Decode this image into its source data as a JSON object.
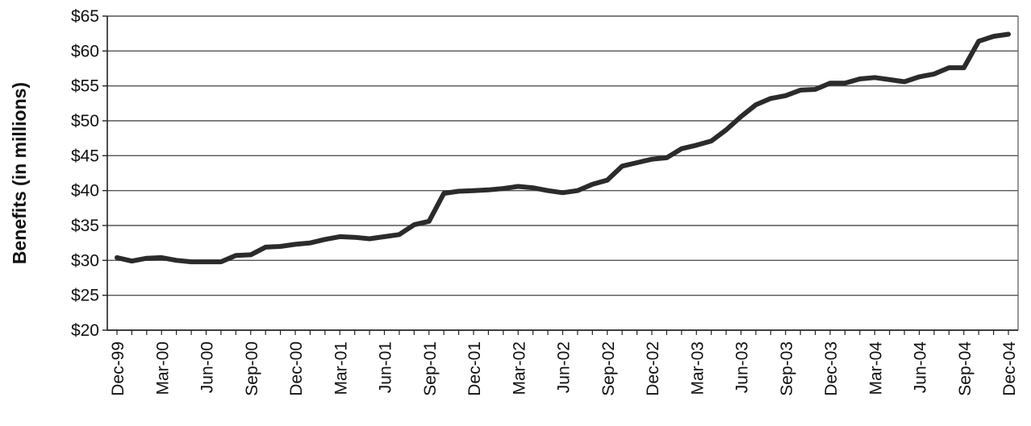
{
  "chart_data": {
    "type": "line",
    "title": "",
    "xlabel": "",
    "ylabel": "Benefits (in millions)",
    "ylim": [
      20,
      65
    ],
    "y_ticks": [
      {
        "value": 20,
        "label": "$20"
      },
      {
        "value": 25,
        "label": "$25"
      },
      {
        "value": 30,
        "label": "$30"
      },
      {
        "value": 35,
        "label": "$35"
      },
      {
        "value": 40,
        "label": "$40"
      },
      {
        "value": 45,
        "label": "$45"
      },
      {
        "value": 50,
        "label": "$50"
      },
      {
        "value": 55,
        "label": "$55"
      },
      {
        "value": 60,
        "label": "$60"
      },
      {
        "value": 65,
        "label": "$65"
      }
    ],
    "grid": true,
    "legend": "none",
    "x_tick_labels": [
      "Dec-99",
      "Mar-00",
      "Jun-00",
      "Sep-00",
      "Dec-00",
      "Mar-01",
      "Jun-01",
      "Sep-01",
      "Dec-01",
      "Mar-02",
      "Jun-02",
      "Sep-02",
      "Dec-02",
      "Mar-03",
      "Jun-03",
      "Sep-03",
      "Dec-03",
      "Mar-04",
      "Jun-04",
      "Sep-04",
      "Dec-04"
    ],
    "x": [
      "Dec-99",
      "Jan-00",
      "Feb-00",
      "Mar-00",
      "Apr-00",
      "May-00",
      "Jun-00",
      "Jul-00",
      "Aug-00",
      "Sep-00",
      "Oct-00",
      "Nov-00",
      "Dec-00",
      "Jan-01",
      "Feb-01",
      "Mar-01",
      "Apr-01",
      "May-01",
      "Jun-01",
      "Jul-01",
      "Aug-01",
      "Sep-01",
      "Oct-01",
      "Nov-01",
      "Dec-01",
      "Jan-02",
      "Feb-02",
      "Mar-02",
      "Apr-02",
      "May-02",
      "Jun-02",
      "Jul-02",
      "Aug-02",
      "Sep-02",
      "Oct-02",
      "Nov-02",
      "Dec-02",
      "Jan-03",
      "Feb-03",
      "Mar-03",
      "Apr-03",
      "May-03",
      "Jun-03",
      "Jul-03",
      "Aug-03",
      "Sep-03",
      "Oct-03",
      "Nov-03",
      "Dec-03",
      "Jan-04",
      "Feb-04",
      "Mar-04",
      "Apr-04",
      "May-04",
      "Jun-04",
      "Jul-04",
      "Aug-04",
      "Sep-04",
      "Oct-04",
      "Nov-04",
      "Dec-04"
    ],
    "series": [
      {
        "color": "#2b2b2b",
        "values": [
          30.4,
          29.9,
          30.3,
          30.4,
          30.0,
          29.8,
          29.8,
          29.8,
          30.7,
          30.8,
          31.9,
          32.0,
          32.3,
          32.5,
          33.0,
          33.4,
          33.3,
          33.1,
          33.4,
          33.7,
          35.1,
          35.6,
          39.6,
          39.9,
          40.0,
          40.1,
          40.3,
          40.6,
          40.4,
          40.0,
          39.7,
          40.0,
          40.9,
          41.5,
          43.5,
          44.0,
          44.5,
          44.7,
          46.0,
          46.5,
          47.1,
          48.7,
          50.6,
          52.3,
          53.2,
          53.6,
          54.4,
          54.5,
          55.4,
          55.4,
          56.0,
          56.2,
          55.9,
          55.6,
          56.3,
          56.7,
          57.6,
          57.6,
          61.4,
          62.1,
          62.4
        ]
      }
    ],
    "colors": {
      "line": "#2b2b2b",
      "grid": "#555555",
      "axis": "#222222",
      "text": "#111111"
    }
  }
}
